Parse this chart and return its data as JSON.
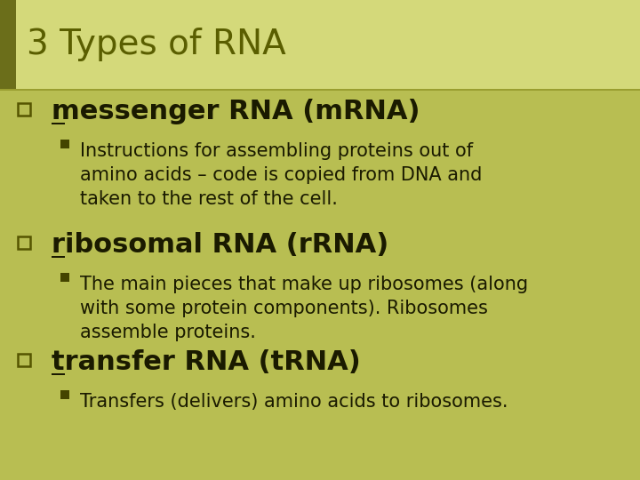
{
  "background_color": "#b8be52",
  "title_bg_color": "#d4d97a",
  "title_text": "3 Types of RNA",
  "title_color": "#5a5e00",
  "title_fontsize": 28,
  "bullet_color": "#1a1a00",
  "bullet_fontsize": 22,
  "sub_fontsize": 15,
  "items": [
    {
      "bullet": "messenger RNA (mRNA)",
      "underline_first": true,
      "sub": "Instructions for assembling proteins out of\namino acids – code is copied from DNA and\ntaken to the rest of the cell."
    },
    {
      "bullet": "ribosomal RNA (rRNA)",
      "underline_first": true,
      "sub": "The main pieces that make up ribosomes (along\nwith some protein components). Ribosomes\nassemble proteins."
    },
    {
      "bullet": "transfer RNA (tRNA)",
      "underline_first": true,
      "sub": "Transfers (delivers) amino acids to ribosomes."
    }
  ],
  "figsize": [
    7.2,
    5.4
  ],
  "dpi": 100
}
